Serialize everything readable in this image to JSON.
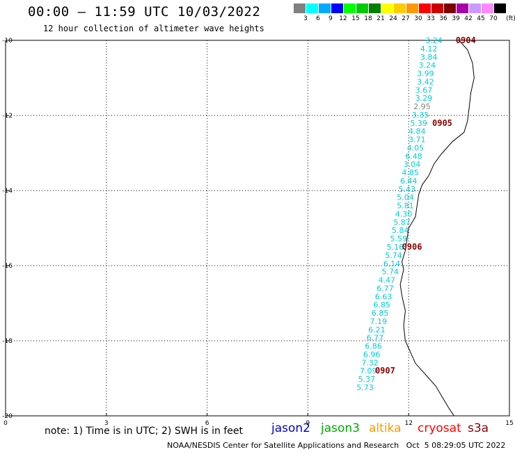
{
  "header": {
    "title": "00:00 – 11:59 UTC 10/03/2022",
    "subtitle": "12 hour collection of altimeter wave heights"
  },
  "color_scale": {
    "unit_label": "(ft)",
    "bins": [
      {
        "label": "3",
        "color": "#808080"
      },
      {
        "label": "6",
        "color": "#00ffff"
      },
      {
        "label": "9",
        "color": "#00aaff"
      },
      {
        "label": "12",
        "color": "#0000ff"
      },
      {
        "label": "15",
        "color": "#00ff00"
      },
      {
        "label": "18",
        "color": "#00cc00"
      },
      {
        "label": "21",
        "color": "#008000"
      },
      {
        "label": "24",
        "color": "#ffff00"
      },
      {
        "label": "27",
        "color": "#ffcc00"
      },
      {
        "label": "30",
        "color": "#ff9900"
      },
      {
        "label": "33",
        "color": "#ff0000"
      },
      {
        "label": "36",
        "color": "#cc0000"
      },
      {
        "label": "39",
        "color": "#800000"
      },
      {
        "label": "42",
        "color": "#aa00aa"
      },
      {
        "label": "45",
        "color": "#cc99ff"
      },
      {
        "label": "70",
        "color": "#ff88ff"
      },
      {
        "label": "",
        "color": "#000000"
      }
    ]
  },
  "axes": {
    "lon_ticks": [
      "0",
      "3",
      "6",
      "9",
      "12",
      "15"
    ],
    "lat_ticks": [
      "-10",
      "-12",
      "-14",
      "-16",
      "-18",
      "-20"
    ]
  },
  "grid": true,
  "chart_data": {
    "type": "scatter",
    "xlim": [
      0,
      15
    ],
    "ylim": [
      -20,
      -10
    ],
    "pass_color": "#00ccdd",
    "measurements": [
      {
        "lon": 12.75,
        "lat": -10.0,
        "value": "3.24"
      },
      {
        "lon": 12.6,
        "lat": -10.22,
        "value": "4.12"
      },
      {
        "lon": 12.6,
        "lat": -10.44,
        "value": "3.84"
      },
      {
        "lon": 12.55,
        "lat": -10.66,
        "value": "3.24"
      },
      {
        "lon": 12.5,
        "lat": -10.88,
        "value": "3.99"
      },
      {
        "lon": 12.5,
        "lat": -11.1,
        "value": "3.42"
      },
      {
        "lon": 12.45,
        "lat": -11.32,
        "value": "3.67"
      },
      {
        "lon": 12.45,
        "lat": -11.54,
        "value": "3.29"
      },
      {
        "lon": 12.4,
        "lat": -11.76,
        "value": "2.95",
        "color": "#808080"
      },
      {
        "lon": 12.35,
        "lat": -11.98,
        "value": "3.35"
      },
      {
        "lon": 12.3,
        "lat": -12.2,
        "value": "5.39"
      },
      {
        "lon": 12.25,
        "lat": -12.42,
        "value": "4.84"
      },
      {
        "lon": 12.25,
        "lat": -12.64,
        "value": "3.71"
      },
      {
        "lon": 12.2,
        "lat": -12.86,
        "value": "4.05"
      },
      {
        "lon": 12.15,
        "lat": -13.08,
        "value": "6.48"
      },
      {
        "lon": 12.1,
        "lat": -13.3,
        "value": "3.04"
      },
      {
        "lon": 12.05,
        "lat": -13.52,
        "value": "4.85"
      },
      {
        "lon": 12.0,
        "lat": -13.74,
        "value": "6.44"
      },
      {
        "lon": 11.95,
        "lat": -13.96,
        "value": "5.43"
      },
      {
        "lon": 11.9,
        "lat": -14.18,
        "value": "5.04"
      },
      {
        "lon": 11.9,
        "lat": -14.4,
        "value": "5.81"
      },
      {
        "lon": 11.85,
        "lat": -14.62,
        "value": "4.30"
      },
      {
        "lon": 11.8,
        "lat": -14.84,
        "value": "5.87"
      },
      {
        "lon": 11.75,
        "lat": -15.06,
        "value": "5.84"
      },
      {
        "lon": 11.7,
        "lat": -15.28,
        "value": "5.59"
      },
      {
        "lon": 11.6,
        "lat": -15.5,
        "value": "5.16"
      },
      {
        "lon": 11.55,
        "lat": -15.72,
        "value": "5.74"
      },
      {
        "lon": 11.5,
        "lat": -15.94,
        "value": "6.14"
      },
      {
        "lon": 11.45,
        "lat": -16.16,
        "value": "5.74"
      },
      {
        "lon": 11.35,
        "lat": -16.38,
        "value": "4.47"
      },
      {
        "lon": 11.3,
        "lat": -16.6,
        "value": "6.77"
      },
      {
        "lon": 11.25,
        "lat": -16.82,
        "value": "6.63"
      },
      {
        "lon": 11.2,
        "lat": -17.04,
        "value": "6.85"
      },
      {
        "lon": 11.15,
        "lat": -17.26,
        "value": "6.85"
      },
      {
        "lon": 11.1,
        "lat": -17.48,
        "value": "7.19"
      },
      {
        "lon": 11.05,
        "lat": -17.7,
        "value": "6.21"
      },
      {
        "lon": 11.0,
        "lat": -17.92,
        "value": "6.77"
      },
      {
        "lon": 10.95,
        "lat": -18.14,
        "value": "6.86"
      },
      {
        "lon": 10.9,
        "lat": -18.36,
        "value": "6.96"
      },
      {
        "lon": 10.85,
        "lat": -18.58,
        "value": "7.32"
      },
      {
        "lon": 10.8,
        "lat": -18.8,
        "value": "7.09"
      },
      {
        "lon": 10.75,
        "lat": -19.02,
        "value": "5.37"
      },
      {
        "lon": 10.7,
        "lat": -19.24,
        "value": "5.73"
      }
    ],
    "time_labels": [
      {
        "lon": 13.7,
        "lat": -10.0,
        "text": "0904"
      },
      {
        "lon": 13.0,
        "lat": -12.2,
        "text": "0905"
      },
      {
        "lon": 12.1,
        "lat": -15.5,
        "text": "0906"
      },
      {
        "lon": 11.3,
        "lat": -18.8,
        "text": "0907"
      }
    ],
    "label_color": "#880000",
    "coastline": [
      [
        13.5,
        -10.0
      ],
      [
        13.75,
        -10.25
      ],
      [
        13.9,
        -10.6
      ],
      [
        13.95,
        -11.0
      ],
      [
        13.85,
        -11.4
      ],
      [
        13.8,
        -11.8
      ],
      [
        13.75,
        -12.15
      ],
      [
        13.65,
        -12.45
      ],
      [
        13.3,
        -12.7
      ],
      [
        12.95,
        -13.05
      ],
      [
        12.75,
        -13.3
      ],
      [
        12.6,
        -13.6
      ],
      [
        12.4,
        -13.85
      ],
      [
        12.3,
        -14.1
      ],
      [
        12.25,
        -14.4
      ],
      [
        12.2,
        -14.7
      ],
      [
        12.0,
        -15.0
      ],
      [
        11.95,
        -15.3
      ],
      [
        11.9,
        -15.6
      ],
      [
        11.8,
        -15.9
      ],
      [
        11.85,
        -16.1
      ],
      [
        11.75,
        -16.5
      ],
      [
        11.8,
        -16.8
      ],
      [
        11.9,
        -17.2
      ],
      [
        11.85,
        -17.6
      ],
      [
        11.9,
        -18.0
      ],
      [
        12.2,
        -18.6
      ],
      [
        12.6,
        -19.0
      ],
      [
        12.8,
        -19.2
      ],
      [
        13.0,
        -19.5
      ],
      [
        13.2,
        -19.8
      ],
      [
        13.35,
        -20.0
      ]
    ]
  },
  "footer": {
    "note": "note: 1) Time is in UTC; 2) SWH is in feet",
    "satellites": [
      {
        "name": "jason2",
        "color": "#0000cc"
      },
      {
        "name": "jason3",
        "color": "#00aa00"
      },
      {
        "name": "altika",
        "color": "#ff9900"
      },
      {
        "name": "cryosat",
        "color": "#ff0000"
      },
      {
        "name": "s3a",
        "color": "#880000"
      }
    ],
    "credit": "NOAA/NESDIS Center for Satellite Applications and Research   Oct  5 08:29:05 UTC 2022"
  }
}
